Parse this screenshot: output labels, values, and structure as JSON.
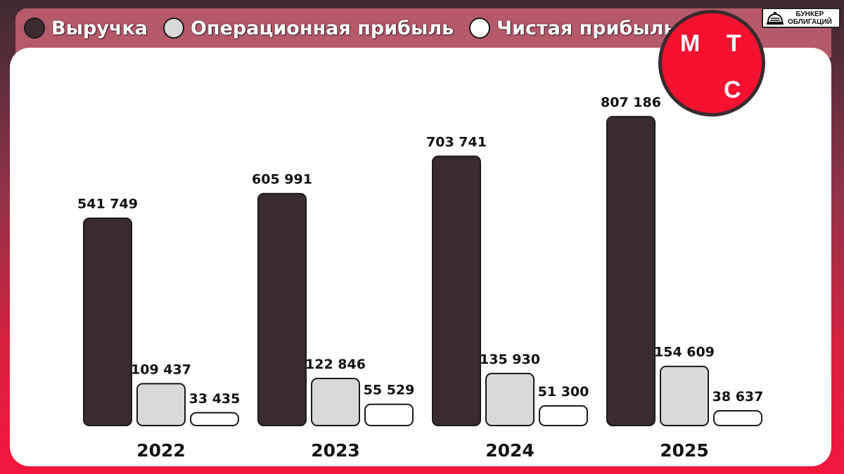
{
  "colors": {
    "revenue": "#3b2a2f",
    "operating_profit": "#d9d9d9",
    "net_profit": "#ffffff",
    "outline": "#1a1a1a",
    "logo_red": "#f5112f"
  },
  "logo": {
    "letters": [
      "М",
      "Т",
      "С"
    ]
  },
  "badge": {
    "line1": "БУНКЕР",
    "line2": "ОБЛИГАЦИЙ",
    "icon": "bunker-bell-icon"
  },
  "chart_data": {
    "type": "bar",
    "categories": [
      "2022",
      "2023",
      "2024",
      "2025"
    ],
    "series": [
      {
        "name": "Выручка",
        "values": [
          541749,
          605991,
          703741,
          807186
        ],
        "labels": [
          "541 749",
          "605 991",
          "703 741",
          "807 186"
        ]
      },
      {
        "name": "Операционная прибыль",
        "values": [
          109437,
          122846,
          135930,
          154609
        ],
        "labels": [
          "109 437",
          "122 846",
          "135 930",
          "154 609"
        ]
      },
      {
        "name": "Чистая прибыль",
        "values": [
          33435,
          55529,
          51300,
          38637
        ],
        "labels": [
          "33 435",
          "55 529",
          "51 300",
          "38 637"
        ]
      }
    ],
    "legend": "top-left",
    "grid": false
  }
}
